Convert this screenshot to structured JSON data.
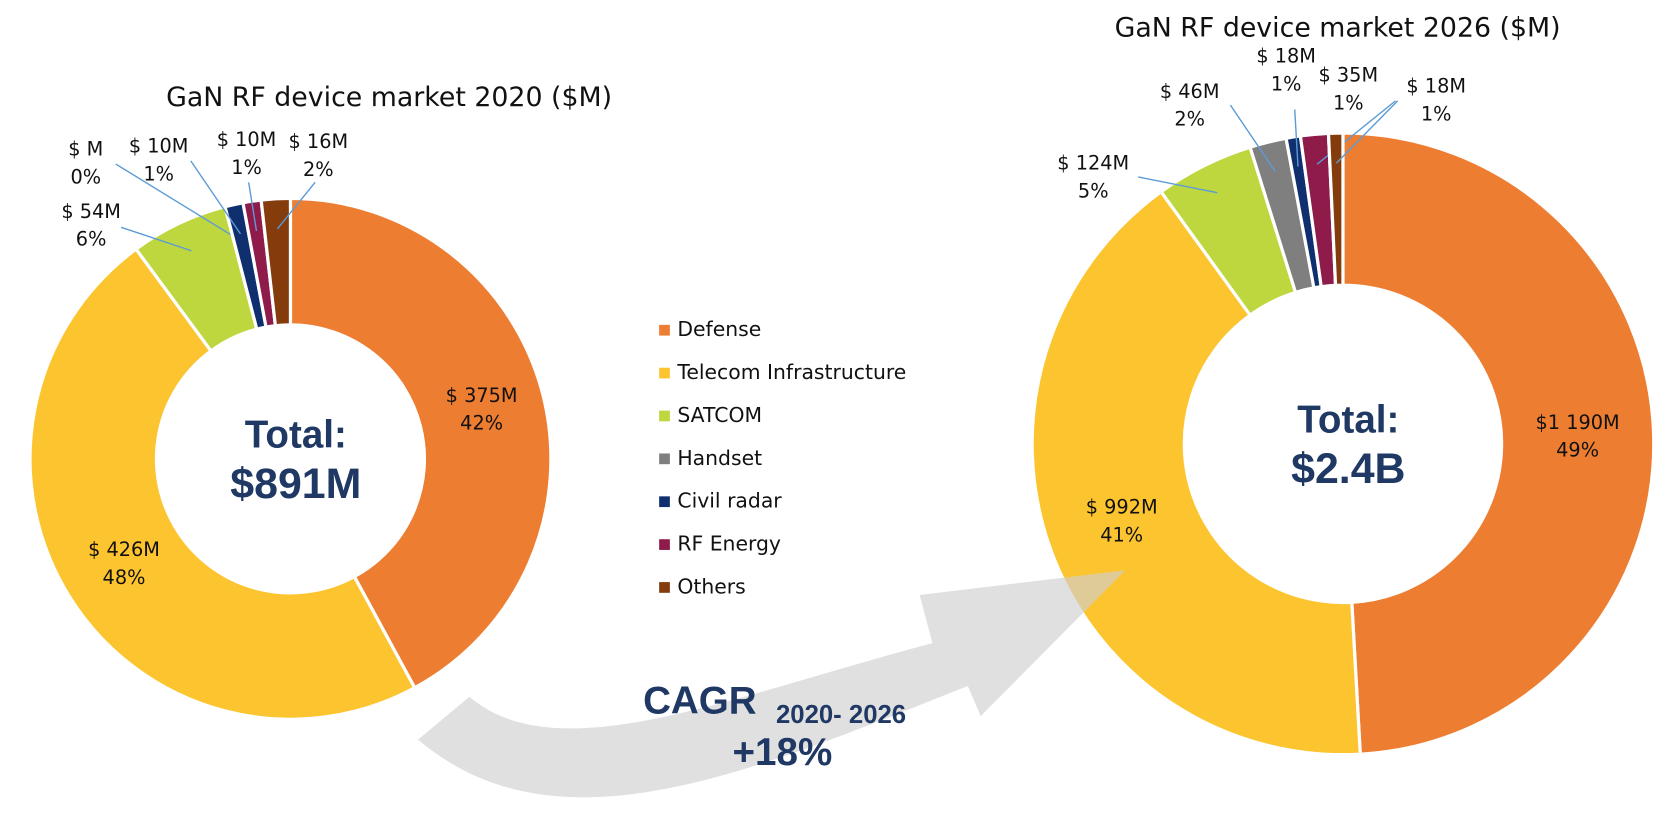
{
  "legend": {
    "categories": [
      "Defense",
      "Telecom Infrastructure",
      "SATCOM",
      "Handset",
      "Civil radar",
      "RF Energy",
      "Others"
    ],
    "colors": [
      "#ed7d31",
      "#fcc42f",
      "#bed73f",
      "#7f7f7f",
      "#0f2f6e",
      "#8e1b4a",
      "#843c0c"
    ]
  },
  "annotation": {
    "label": "CAGR",
    "period": "2020- 2026",
    "value": "+18%"
  },
  "chart_data": [
    {
      "type": "pie",
      "title": "GaN RF device market 2020 ($M)",
      "center_label": "Total:",
      "center_value": "$891M",
      "values": [
        375,
        426,
        54,
        0,
        10,
        10,
        16
      ],
      "value_labels": [
        "$ 375M",
        "$ 426M",
        "$ 54M",
        "$ M",
        "$ 10M",
        "$ 10M",
        "$ 16M"
      ],
      "share_labels": [
        "42%",
        "48%",
        "6%",
        "0%",
        "1%",
        "1%",
        "2%"
      ]
    },
    {
      "type": "pie",
      "title": "GaN RF device market 2026 ($M)",
      "center_label": "Total:",
      "center_value": "$2.4B",
      "values": [
        1190,
        992,
        124,
        46,
        18,
        35,
        18
      ],
      "value_labels": [
        "$1 190M",
        "$ 992M",
        "$ 124M",
        "$ 46M",
        "$ 18M",
        "$ 35M",
        "$ 18M"
      ],
      "share_labels": [
        "49%",
        "41%",
        "5%",
        "2%",
        "1%",
        "1%",
        "1%"
      ]
    }
  ]
}
